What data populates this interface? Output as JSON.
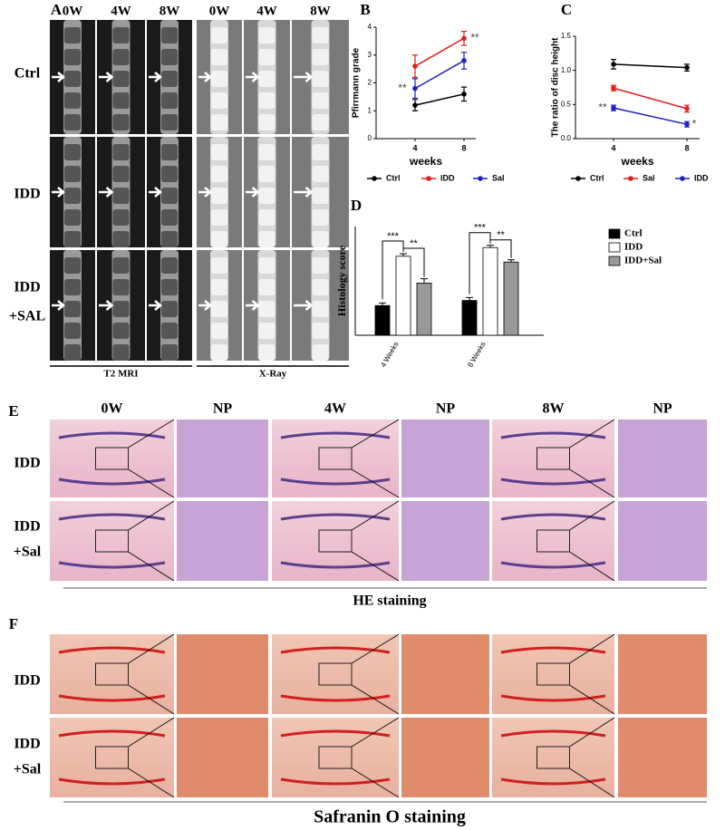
{
  "panels": {
    "A": {
      "letter": "A",
      "columns": [
        "0W",
        "4W",
        "8W",
        "0W",
        "4W",
        "8W"
      ],
      "rows": [
        [
          "Ctrl"
        ],
        [
          "IDD"
        ],
        [
          "IDD",
          "+SAL"
        ]
      ],
      "footers": [
        "T2 MRI",
        "X-Ray"
      ]
    },
    "E": {
      "letter": "E",
      "columns": [
        "0W",
        "NP",
        "4W",
        "NP",
        "8W",
        "NP"
      ],
      "rows": [
        [
          "IDD"
        ],
        [
          "IDD",
          "+Sal"
        ]
      ],
      "caption": "HE staining"
    },
    "F": {
      "letter": "F",
      "rows": [
        [
          "IDD"
        ],
        [
          "IDD",
          "+Sal"
        ]
      ],
      "caption": "Safranin O staining"
    }
  },
  "chart_data": [
    {
      "type": "line",
      "panel": "B",
      "ylabel": "Pfirrmann grade",
      "xlabel": "weeks",
      "categories": [
        "4",
        "8"
      ],
      "ylim": [
        0,
        4
      ],
      "yticks": [
        0,
        1,
        2,
        3,
        4
      ],
      "series": [
        {
          "name": "Ctrl",
          "color": "#000000",
          "values": [
            1.2,
            1.6
          ],
          "errors": [
            0.2,
            0.25
          ]
        },
        {
          "name": "IDD",
          "color": "#e0201b",
          "values": [
            2.6,
            3.6
          ],
          "errors": [
            0.4,
            0.25
          ]
        },
        {
          "name": "Sal",
          "color": "#1f1fc8",
          "values": [
            1.8,
            2.8
          ],
          "errors": [
            0.35,
            0.3
          ]
        }
      ],
      "annotations": [
        "**",
        "**"
      ]
    },
    {
      "type": "line",
      "panel": "C",
      "ylabel": "The ratio of disc height",
      "xlabel": "weeks",
      "categories": [
        "4",
        "8"
      ],
      "ylim": [
        0,
        1.5
      ],
      "yticks": [
        {
          "value": 0,
          "label": "0.0"
        },
        0.5,
        {
          "value": 1,
          "label": "1.0"
        },
        1.5
      ],
      "series": [
        {
          "name": "Ctrl",
          "color": "#000000",
          "values": [
            1.09,
            1.04
          ],
          "errors": [
            0.07,
            0.05
          ]
        },
        {
          "name": "Sal",
          "color": "#e0201b",
          "values": [
            0.74,
            0.44
          ],
          "errors": [
            0.04,
            0.05
          ]
        },
        {
          "name": "IDD",
          "color": "#1f1fc8",
          "values": [
            0.45,
            0.21
          ],
          "errors": [
            0.04,
            0.04
          ]
        }
      ],
      "annotations": [
        "**",
        "*"
      ]
    },
    {
      "type": "bar",
      "panel": "D",
      "ylabel": "Histology score",
      "categories": [
        "4 Weeks",
        "8 Weeks"
      ],
      "ylim": [
        0,
        15
      ],
      "series": [
        {
          "name": "Ctrl",
          "color": "#000000",
          "values": [
            4.1,
            4.8
          ],
          "errors": [
            0.35,
            0.4
          ]
        },
        {
          "name": "IDD",
          "color": "#ffffff",
          "values": [
            10.9,
            12.1
          ],
          "errors": [
            0.35,
            0.3
          ]
        },
        {
          "name": "IDD+Sal",
          "color": "#999999",
          "values": [
            7.2,
            10.1
          ],
          "errors": [
            0.6,
            0.3
          ]
        }
      ],
      "annotations": [
        "***",
        "**",
        "***",
        "**"
      ]
    }
  ]
}
